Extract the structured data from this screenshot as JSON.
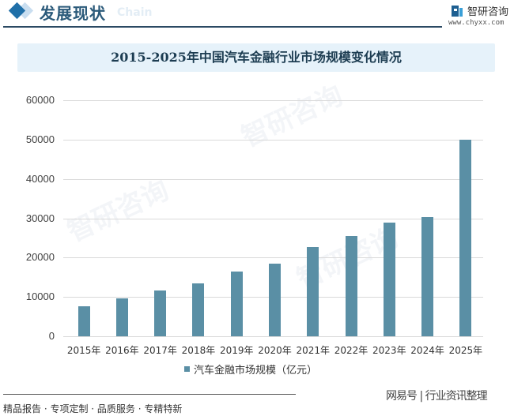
{
  "header": {
    "section_title": "发展现状",
    "section_ghost": "Chain",
    "logo_name": "智研咨询",
    "logo_url": "www.chyxx.com"
  },
  "chart_data": {
    "type": "bar",
    "title": "2015-2025年中国汽车金融行业市场规模变化情况",
    "categories": [
      "2015年",
      "2016年",
      "2017年",
      "2018年",
      "2019年",
      "2020年",
      "2021年",
      "2022年",
      "2023年",
      "2024年",
      "2025年"
    ],
    "series": [
      {
        "name": "汽车金融市场规模（亿元）",
        "color": "#5a8fa5",
        "values": [
          7600,
          9600,
          11600,
          13400,
          16400,
          18400,
          22600,
          25500,
          28900,
          30300,
          50000
        ]
      }
    ],
    "xlabel": "",
    "ylabel": "",
    "ylim": [
      0,
      60000
    ],
    "yticks": [
      "60000",
      "50000",
      "40000",
      "30000",
      "20000",
      "10000",
      "0"
    ],
    "grid": true,
    "legend_position": "bottom"
  },
  "footer": {
    "tagline": "精品报告 · 专项定制 · 品质服务 · 专精特新",
    "source": "网易号 | 行业资讯整理"
  },
  "watermark": "智研咨询"
}
